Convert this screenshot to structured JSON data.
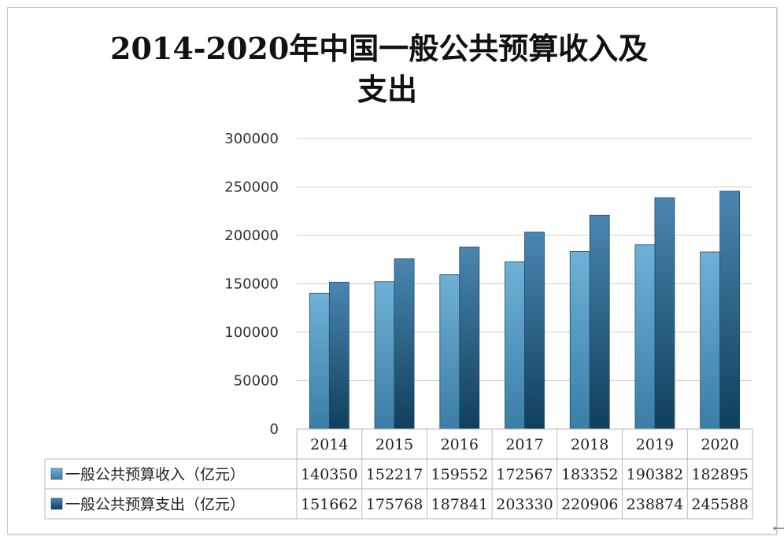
{
  "chart_data": {
    "type": "bar",
    "title_line1": "2014-2020年中国一般公共预算收入及",
    "title_line2": "支出",
    "categories": [
      "2014",
      "2015",
      "2016",
      "2017",
      "2018",
      "2019",
      "2020"
    ],
    "series": [
      {
        "name": "一般公共预算收入（亿元）",
        "values": [
          140350,
          152217,
          159552,
          172567,
          183352,
          190382,
          182895
        ],
        "color_top": "#6fb1d6",
        "color_bottom": "#3a7da6"
      },
      {
        "name": "一般公共预算支出（亿元）",
        "values": [
          151662,
          175768,
          187841,
          203330,
          220906,
          238874,
          245588
        ],
        "color_top": "#4a86b0",
        "color_bottom": "#0f3f5c"
      }
    ],
    "ylim": [
      0,
      300000
    ],
    "yticks": [
      0,
      50000,
      100000,
      150000,
      200000,
      250000,
      300000
    ],
    "ytick_labels": [
      "0",
      "50000",
      "100000",
      "150000",
      "200000",
      "250000",
      "300000"
    ],
    "grid": true,
    "data_table": true
  }
}
